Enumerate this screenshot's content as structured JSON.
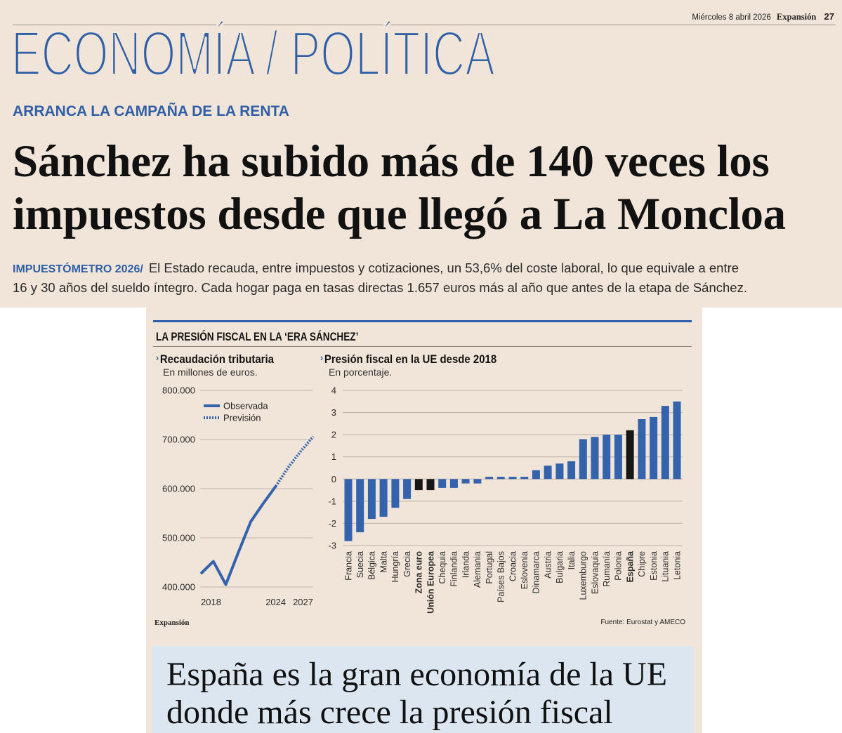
{
  "header": {
    "date": "Miércoles 8 abril 2026",
    "publication": "Expansión",
    "page_number": "27"
  },
  "section_title": "ECONOMÍA / POLÍTICA",
  "kicker": "ARRANCA LA CAMPAÑA DE LA RENTA",
  "headline": [
    "Sánchez ha subido más de 140 veces los",
    "impuestos desde que llegó a La Moncloa"
  ],
  "lead": {
    "label": "IMPUESTÓMETRO 2026/",
    "lines": [
      "El Estado recauda, entre impuestos y cotizaciones, un 53,6% del coste laboral, lo que equivale a entre",
      "16 y 30 años del sueldo íntegro. Cada hogar paga en tasas directas 1.657 euros más al año que antes de la etapa de Sánchez."
    ]
  },
  "graphic": {
    "title": "LA PRESIÓN FISCAL EN LA ‘ERA SÁNCHEZ’",
    "credit": "Expansión",
    "source": "Fuente: Eurostat y AMECO"
  },
  "subhead": [
    "España es la gran economía de la UE",
    "donde más crece la presión fiscal"
  ],
  "colors": {
    "brand_blue": "#2f5fa7",
    "series": "#3463ad",
    "highlight": "#161616",
    "grid": "#bbb2a8",
    "axis_text": "#2b2b2b",
    "background": "#f1e5d9",
    "subhead_box": "#dbe6f0"
  },
  "chart_data": [
    {
      "type": "line",
      "title": "Recaudación tributaria",
      "subtitle": "En millones de euros.",
      "x": [
        2018,
        2019,
        2020,
        2021,
        2022,
        2023,
        2024,
        2025,
        2026,
        2027
      ],
      "xticks": [
        2018,
        2024,
        2027
      ],
      "ylim": [
        400000,
        800000
      ],
      "yticks": [
        800000,
        700000,
        600000,
        500000,
        400000
      ],
      "yticklabels": [
        "800.000",
        "700.000",
        "600.000",
        "500.000",
        "400.000"
      ],
      "grid": true,
      "legend": "top-left",
      "series": [
        {
          "name": "Observada",
          "style": "solid",
          "x": [
            2018,
            2019,
            2020,
            2021,
            2022,
            2023,
            2024
          ],
          "values": [
            427000,
            452000,
            405000,
            470000,
            533000,
            570000,
            605000
          ]
        },
        {
          "name": "Previsión",
          "style": "dotted",
          "x": [
            2024,
            2025,
            2026,
            2027
          ],
          "values": [
            605000,
            643000,
            676000,
            706000
          ]
        }
      ]
    },
    {
      "type": "bar",
      "title": "Presión fiscal en la UE desde 2018",
      "subtitle": "En porcentaje.",
      "ylim": [
        -3,
        4
      ],
      "yticks": [
        4,
        3,
        2,
        1,
        0,
        -1,
        -2,
        -3
      ],
      "grid": true,
      "categories": [
        "Francia",
        "Suecia",
        "Bélgica",
        "Malta",
        "Hungría",
        "Grecia",
        "Zona euro",
        "Unión Europea",
        "Chequia",
        "Finlandia",
        "Irlanda",
        "Alemania",
        "Portugal",
        "Países Bajos",
        "Croacia",
        "Eslovenia",
        "Dinamarca",
        "Austria",
        "Bulgaria",
        "Italia",
        "Luxemburgo",
        "Eslovaquia",
        "Rumanía",
        "Polonia",
        "España",
        "Chipre",
        "Estonia",
        "Lituania",
        "Letonia"
      ],
      "values": [
        -2.8,
        -2.4,
        -1.8,
        -1.7,
        -1.3,
        -0.9,
        -0.5,
        -0.5,
        -0.4,
        -0.4,
        -0.2,
        -0.2,
        0.1,
        0.1,
        0.1,
        0.1,
        0.4,
        0.6,
        0.7,
        0.8,
        1.8,
        1.9,
        2.0,
        2.0,
        2.2,
        2.7,
        2.8,
        3.3,
        3.5
      ],
      "highlight": [
        "Zona euro",
        "Unión Europea",
        "España"
      ]
    }
  ]
}
